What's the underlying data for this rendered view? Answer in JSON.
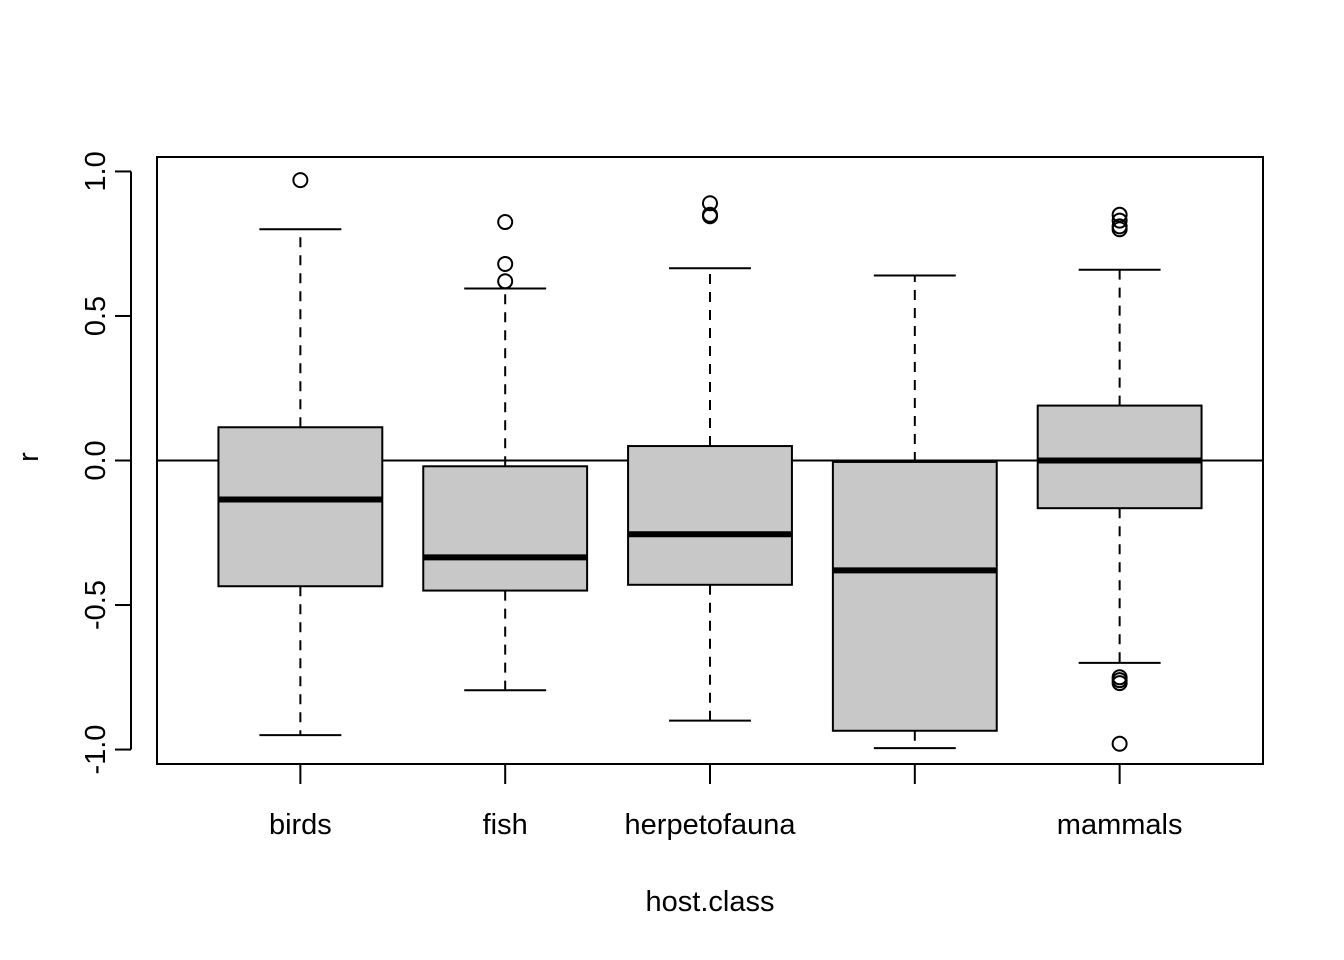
{
  "chart_data": {
    "type": "box",
    "xlabel": "host.class",
    "ylabel": "r",
    "ylim": [
      -1.05,
      1.05
    ],
    "yticks": [
      -1.0,
      -0.5,
      0.0,
      0.5,
      1.0
    ],
    "ytick_labels": [
      "-1.0",
      "-0.5",
      "0.0",
      "0.5",
      "1.0"
    ],
    "reference_line": 0.0,
    "box_fill": "#c8c8c8",
    "categories": [
      "birds",
      "fish",
      "herpetofauna",
      "",
      "mammals"
    ],
    "boxes": [
      {
        "category": "birds",
        "whisker_low": -0.95,
        "q1": -0.435,
        "median": -0.135,
        "q3": 0.115,
        "whisker_high": 0.8,
        "outliers": [
          0.97
        ]
      },
      {
        "category": "fish",
        "whisker_low": -0.795,
        "q1": -0.45,
        "median": -0.335,
        "q3": -0.02,
        "whisker_high": 0.595,
        "outliers": [
          0.62,
          0.68,
          0.825
        ]
      },
      {
        "category": "herpetofauna",
        "whisker_low": -0.9,
        "q1": -0.43,
        "median": -0.255,
        "q3": 0.05,
        "whisker_high": 0.665,
        "outliers": [
          0.845,
          0.85,
          0.89
        ]
      },
      {
        "category": "",
        "whisker_low": -0.995,
        "q1": -0.935,
        "median": -0.38,
        "q3": -0.005,
        "whisker_high": 0.64,
        "outliers": []
      },
      {
        "category": "mammals",
        "whisker_low": -0.7,
        "q1": -0.165,
        "median": 0.0,
        "q3": 0.19,
        "whisker_high": 0.66,
        "outliers": [
          0.8,
          0.81,
          0.83,
          0.85,
          -0.75,
          -0.76,
          -0.77,
          -0.98
        ]
      }
    ]
  }
}
